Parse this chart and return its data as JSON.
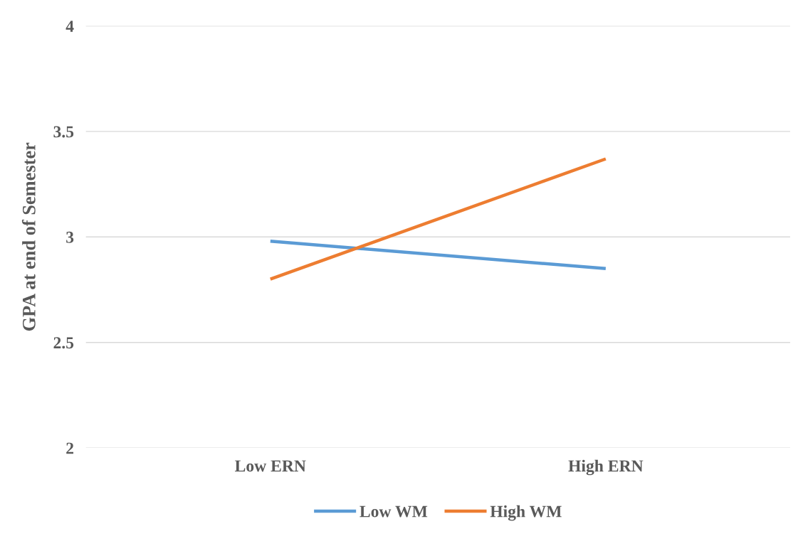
{
  "chart_data": {
    "type": "line",
    "ylabel": "GPA at end of Semester",
    "categories": [
      "Low ERN",
      "High ERN"
    ],
    "series": [
      {
        "name": "Low WM",
        "color": "#5b9bd5",
        "values": [
          2.98,
          2.85
        ]
      },
      {
        "name": "High WM",
        "color": "#ed7d31",
        "values": [
          2.8,
          3.37
        ]
      }
    ],
    "ylim": [
      2,
      4
    ],
    "yticks": [
      2,
      2.5,
      3,
      3.5,
      4
    ],
    "grid": "y",
    "legend": "bottom",
    "marker": "none",
    "line_style": "solid"
  }
}
